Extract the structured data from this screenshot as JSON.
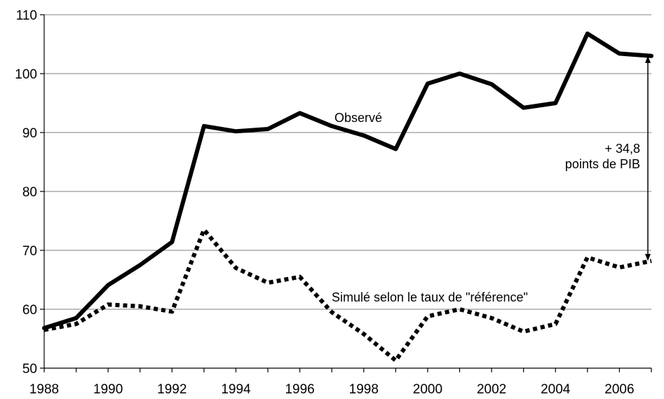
{
  "chart_data": {
    "type": "line",
    "title": "",
    "xlabel": "",
    "ylabel": "",
    "xlim": [
      1988,
      2007
    ],
    "ylim": [
      50,
      110
    ],
    "yticks": [
      50,
      60,
      70,
      80,
      90,
      100,
      110
    ],
    "xticks": [
      1988,
      1990,
      1992,
      1994,
      1996,
      1998,
      2000,
      2002,
      2004,
      2006
    ],
    "grid": "horizontal",
    "x": [
      1988,
      1989,
      1990,
      1991,
      1992,
      1993,
      1994,
      1995,
      1996,
      1997,
      1998,
      1999,
      2000,
      2001,
      2002,
      2003,
      2004,
      2005,
      2006,
      2007
    ],
    "series": [
      {
        "name": "Observé",
        "style": "solid",
        "color": "#000000",
        "values": [
          56.8,
          58.5,
          64.1,
          67.5,
          71.4,
          91.1,
          90.2,
          90.6,
          93.3,
          91.1,
          89.5,
          87.2,
          98.3,
          100.0,
          98.2,
          94.2,
          95.0,
          106.8,
          103.4,
          103.0
        ]
      },
      {
        "name": "Simulé  selon le taux de \"référence\"",
        "style": "dotted",
        "color": "#000000",
        "values": [
          56.5,
          57.5,
          60.8,
          60.5,
          59.6,
          73.5,
          67.0,
          64.5,
          65.5,
          59.5,
          55.8,
          51.3,
          58.8,
          60.0,
          58.5,
          56.2,
          57.5,
          68.8,
          67.1,
          68.2
        ]
      }
    ],
    "annotation": {
      "line1": "+ 34,8",
      "line2": "points  de PIB",
      "x": 2007,
      "y_top": 103.0,
      "y_bottom": 68.2
    }
  }
}
